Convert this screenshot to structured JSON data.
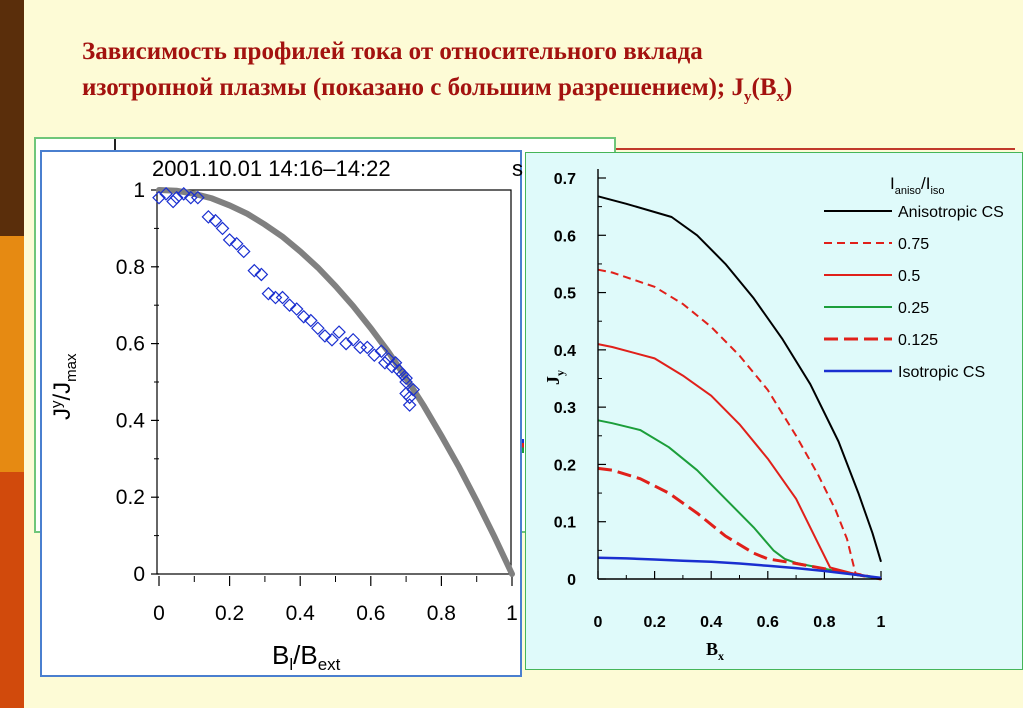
{
  "sidebar": {
    "colors": [
      "#5a2e0b",
      "#e68a12",
      "#d14a0c"
    ]
  },
  "slide": {
    "title_line1": "Зависимость профилей тока от относительного вклада",
    "title_line2_main": "изотропной плазмы (показано с большим разрешением); J",
    "title_sub1": "y",
    "title_paren": "(B",
    "title_sub2": "x",
    "title_end": ")",
    "title_color": "#a3120f"
  },
  "chart_data": [
    {
      "type": "scatter",
      "title": "2001.10.01 14:16–14:22",
      "ylabel_main": "J",
      "ylabel_sup": "y",
      "ylabel_rest": "/J",
      "ylabel_sub": "max",
      "xlabel_main": "B",
      "xlabel_sub1": "l",
      "xlabel_mid": "/B",
      "xlabel_sub2": "ext",
      "xlim": [
        0,
        1
      ],
      "ylim": [
        0,
        1
      ],
      "xticks": [
        "0",
        "0.2",
        "0.4",
        "0.6",
        "0.8",
        "1"
      ],
      "yticks": [
        "0",
        "0.2",
        "0.4",
        "0.6",
        "0.8",
        "1"
      ],
      "model_curve": {
        "color": "#808080",
        "x": [
          0,
          0.05,
          0.1,
          0.15,
          0.2,
          0.25,
          0.3,
          0.35,
          0.4,
          0.45,
          0.5,
          0.55,
          0.6,
          0.65,
          0.7,
          0.75,
          0.8,
          0.85,
          0.9,
          0.95,
          1.0
        ],
        "y": [
          1.0,
          0.998,
          0.99,
          0.978,
          0.96,
          0.938,
          0.91,
          0.878,
          0.84,
          0.798,
          0.75,
          0.698,
          0.64,
          0.578,
          0.51,
          0.438,
          0.36,
          0.278,
          0.19,
          0.098,
          0.0
        ]
      },
      "points": {
        "color": "#1a2fd0",
        "x": [
          0.0,
          0.02,
          0.04,
          0.05,
          0.07,
          0.09,
          0.11,
          0.14,
          0.16,
          0.18,
          0.2,
          0.22,
          0.24,
          0.27,
          0.29,
          0.31,
          0.33,
          0.35,
          0.37,
          0.39,
          0.41,
          0.43,
          0.45,
          0.47,
          0.49,
          0.51,
          0.53,
          0.55,
          0.57,
          0.59,
          0.61,
          0.63,
          0.64,
          0.65,
          0.66,
          0.67,
          0.68,
          0.69,
          0.7,
          0.7,
          0.71,
          0.71,
          0.72,
          0.7
        ],
        "y": [
          0.98,
          0.99,
          0.97,
          0.98,
          0.99,
          0.98,
          0.98,
          0.93,
          0.92,
          0.9,
          0.87,
          0.86,
          0.84,
          0.79,
          0.78,
          0.73,
          0.72,
          0.72,
          0.7,
          0.69,
          0.67,
          0.66,
          0.64,
          0.62,
          0.61,
          0.63,
          0.6,
          0.61,
          0.59,
          0.59,
          0.57,
          0.58,
          0.55,
          0.56,
          0.54,
          0.55,
          0.53,
          0.52,
          0.5,
          0.47,
          0.46,
          0.44,
          0.48,
          0.51
        ]
      }
    },
    {
      "type": "line",
      "xlabel_main": "B",
      "xlabel_sub": "x",
      "ylabel_main": "J",
      "ylabel_sub": "y",
      "xlim": [
        0,
        1
      ],
      "ylim": [
        0,
        0.7
      ],
      "xticks": [
        "0",
        "0.2",
        "0.4",
        "0.6",
        "0.8",
        "1"
      ],
      "yticks": [
        "0",
        "0.1",
        "0.2",
        "0.3",
        "0.4",
        "0.5",
        "0.6",
        "0.7"
      ],
      "legend_title_main": "I",
      "legend_title_sub1": "aniso",
      "legend_title_mid": "/I",
      "legend_title_sub2": "iso",
      "legend_position": "top-right",
      "series": [
        {
          "name": "Anisotropic CS",
          "color": "#000000",
          "dash": "",
          "width": 2,
          "x": [
            0,
            0.1,
            0.26,
            0.35,
            0.45,
            0.55,
            0.65,
            0.75,
            0.85,
            0.92,
            0.97,
            1.0
          ],
          "y": [
            0.668,
            0.655,
            0.632,
            0.6,
            0.55,
            0.49,
            0.42,
            0.34,
            0.24,
            0.15,
            0.08,
            0.03
          ]
        },
        {
          "name": "0.75",
          "color": "#e0201a",
          "dash": "8,5",
          "width": 2,
          "x": [
            0,
            0.05,
            0.2,
            0.3,
            0.4,
            0.5,
            0.6,
            0.7,
            0.78,
            0.84,
            0.88,
            0.91,
            0.95,
            1.0
          ],
          "y": [
            0.54,
            0.535,
            0.51,
            0.48,
            0.44,
            0.39,
            0.33,
            0.25,
            0.18,
            0.12,
            0.07,
            0.01,
            0.006,
            0.0
          ]
        },
        {
          "name": "0.5",
          "color": "#e0201a",
          "dash": "",
          "width": 2,
          "x": [
            0,
            0.05,
            0.2,
            0.3,
            0.4,
            0.5,
            0.6,
            0.7,
            0.78,
            0.82,
            0.9,
            1.0
          ],
          "y": [
            0.41,
            0.405,
            0.385,
            0.355,
            0.32,
            0.27,
            0.21,
            0.14,
            0.06,
            0.02,
            0.01,
            0.0
          ]
        },
        {
          "name": "0.25",
          "color": "#1c9e3a",
          "dash": "",
          "width": 2,
          "x": [
            0,
            0.05,
            0.15,
            0.25,
            0.35,
            0.45,
            0.55,
            0.62,
            0.66,
            0.7,
            0.8,
            0.9,
            1.0
          ],
          "y": [
            0.277,
            0.272,
            0.26,
            0.23,
            0.19,
            0.14,
            0.09,
            0.05,
            0.035,
            0.028,
            0.018,
            0.008,
            0.0
          ]
        },
        {
          "name": "0.125",
          "color": "#e0201a",
          "dash": "14,6",
          "width": 3,
          "x": [
            0,
            0.05,
            0.15,
            0.25,
            0.35,
            0.45,
            0.55,
            0.6,
            0.7,
            0.8,
            0.9,
            1.0
          ],
          "y": [
            0.193,
            0.19,
            0.175,
            0.15,
            0.115,
            0.075,
            0.045,
            0.035,
            0.027,
            0.018,
            0.009,
            0.0
          ]
        },
        {
          "name": "Isotropic CS",
          "color": "#1a2fd0",
          "dash": "",
          "width": 2.5,
          "x": [
            0,
            0.1,
            0.2,
            0.3,
            0.4,
            0.5,
            0.6,
            0.7,
            0.8,
            0.9,
            1.0
          ],
          "y": [
            0.037,
            0.036,
            0.034,
            0.032,
            0.03,
            0.027,
            0.023,
            0.019,
            0.014,
            0.008,
            0.002
          ]
        }
      ]
    }
  ]
}
